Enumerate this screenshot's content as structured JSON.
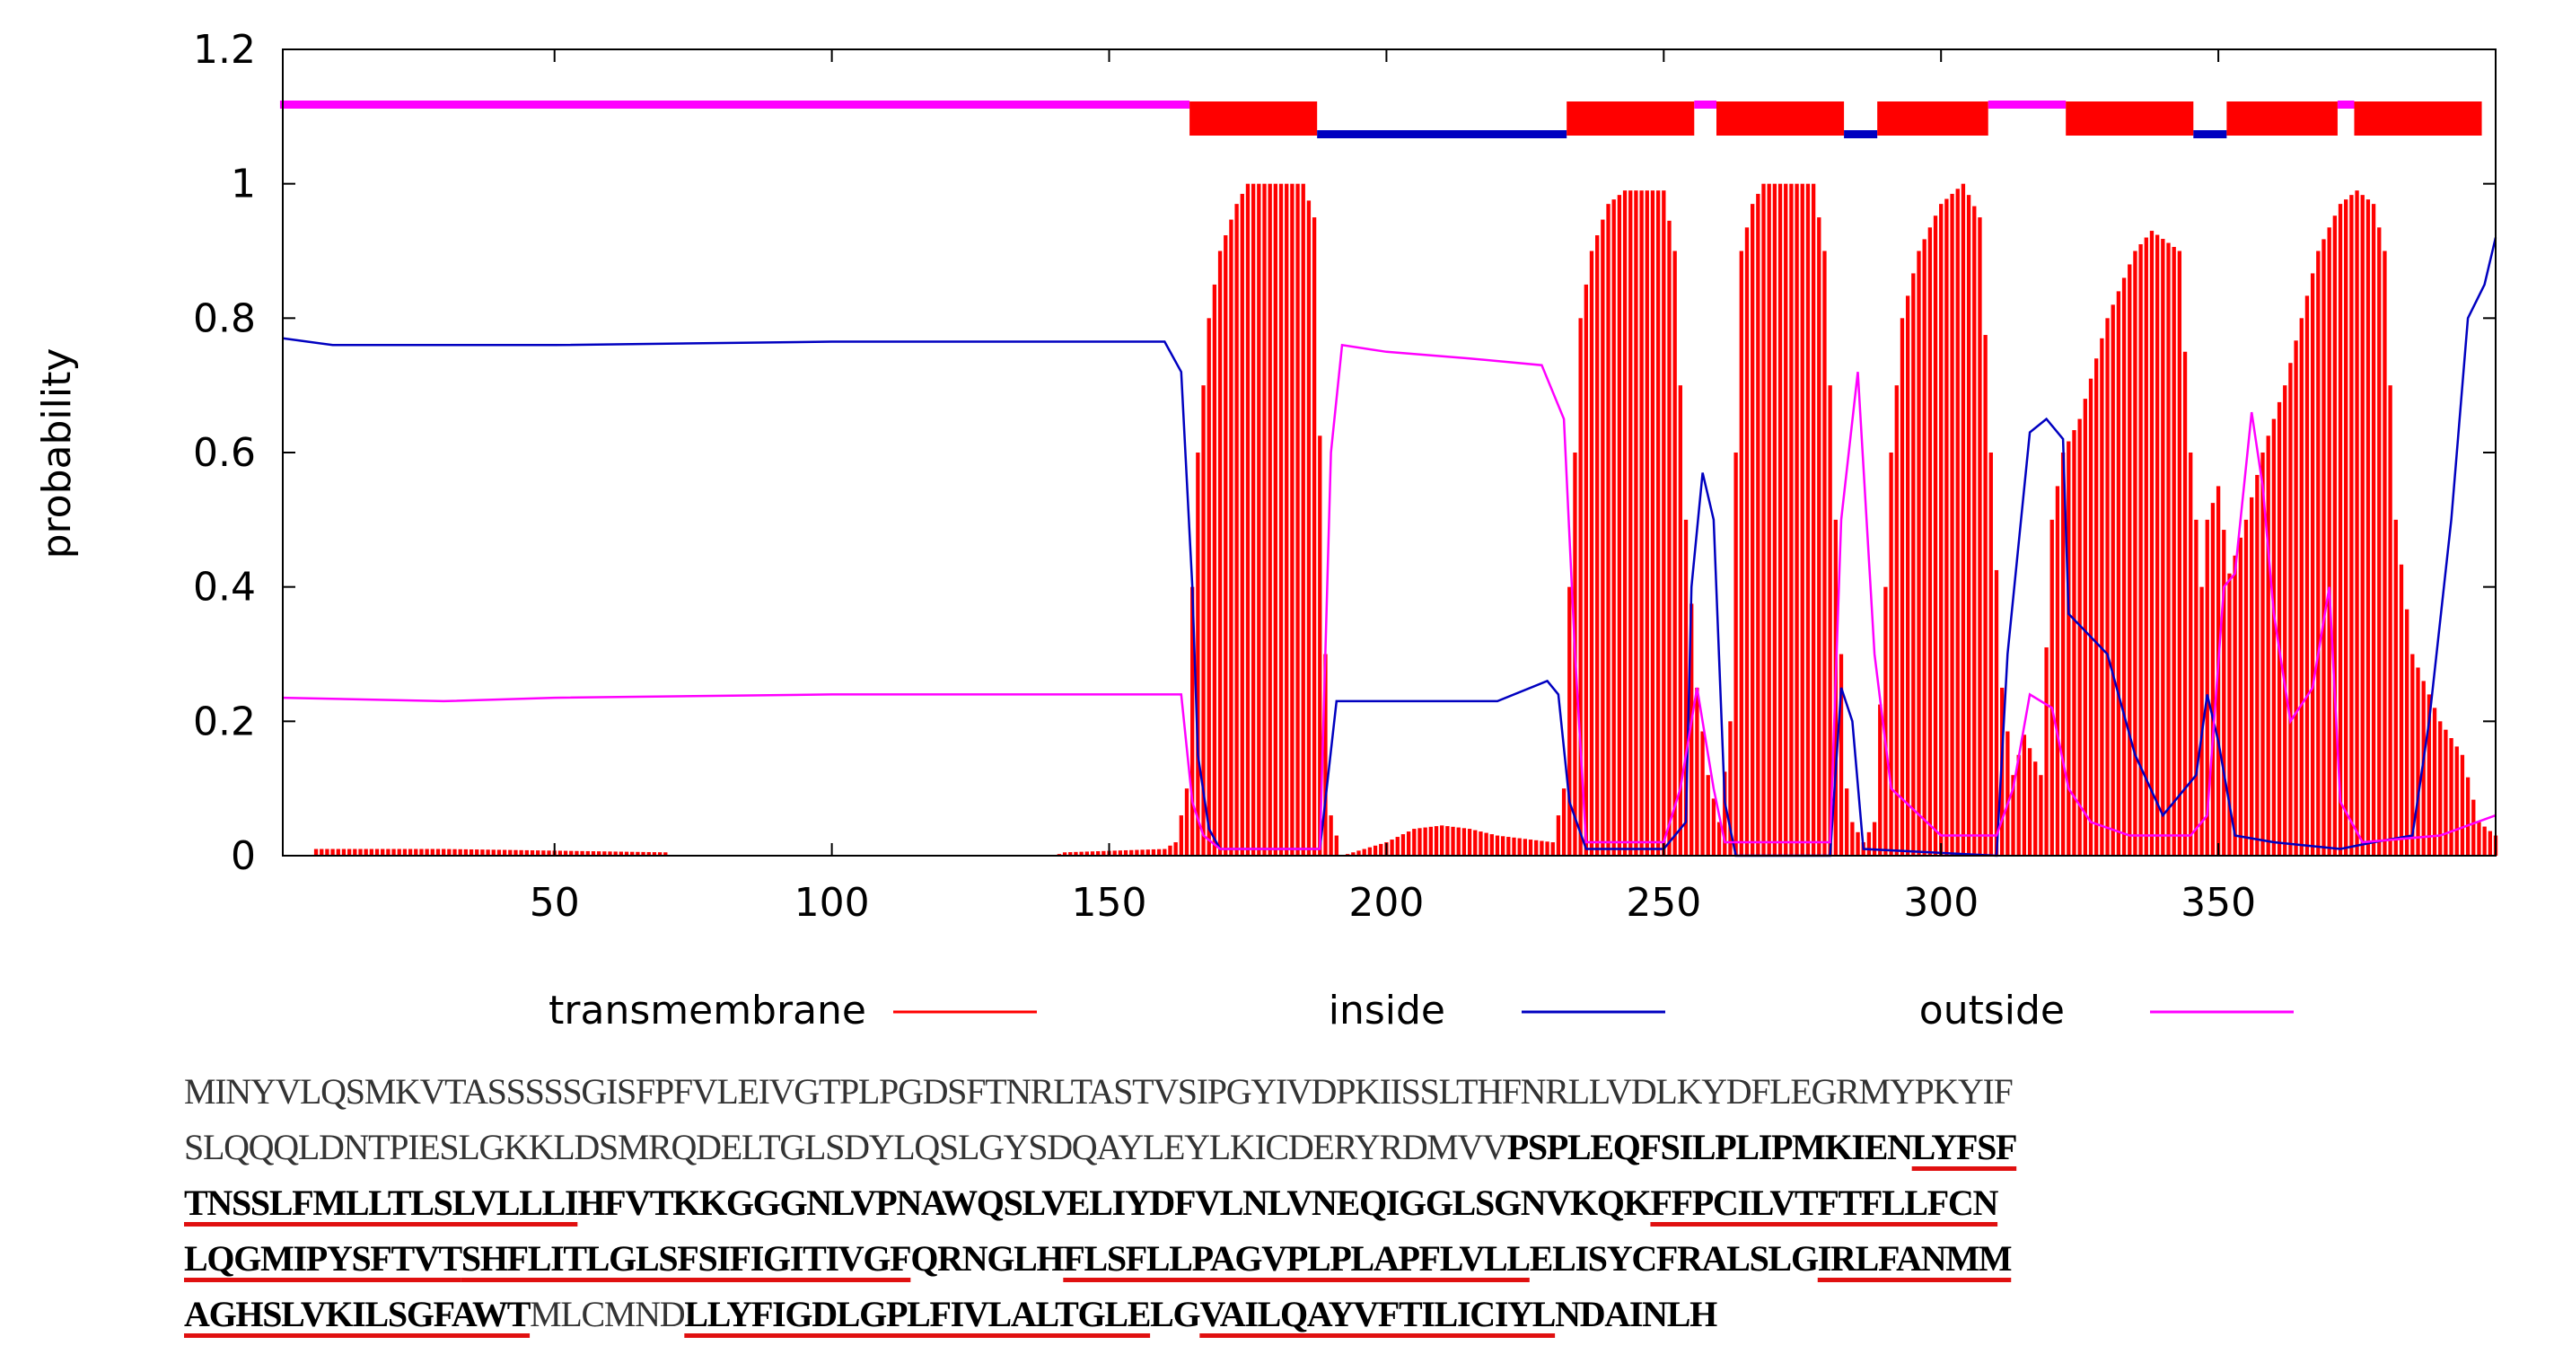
{
  "colors": {
    "transmembrane": "#ff0000",
    "inside": "#0000c0",
    "outside": "#ff00ff",
    "axis": "#000000",
    "grid": "none"
  },
  "chart_data": {
    "type": "bar",
    "title": "",
    "xlabel": "",
    "ylabel": "probability",
    "xlim": [
      1,
      400
    ],
    "ylim": [
      0,
      1.2
    ],
    "xticks": [
      50,
      100,
      150,
      200,
      250,
      300,
      350
    ],
    "yticks": [
      0,
      0.2,
      0.4,
      0.6,
      0.8,
      1,
      1.2
    ],
    "ytick_labels": [
      "0",
      "0.2",
      "0.4",
      "0.6",
      "0.8",
      "1",
      "1.2"
    ],
    "legend": {
      "placement": "bottom",
      "entries": [
        "transmembrane",
        "inside",
        "outside"
      ]
    },
    "series": [
      {
        "name": "transmembrane",
        "style": "bars",
        "points": [
          [
            1,
            0
          ],
          [
            6,
            0
          ],
          [
            7,
            0.01
          ],
          [
            30,
            0.01
          ],
          [
            70,
            0.005
          ],
          [
            71,
            0
          ],
          [
            140,
            0
          ],
          [
            142,
            0.005
          ],
          [
            160,
            0.01
          ],
          [
            162,
            0.02
          ],
          [
            164,
            0.1
          ],
          [
            165,
            0.4
          ],
          [
            166,
            0.6
          ],
          [
            168,
            0.8
          ],
          [
            170,
            0.9
          ],
          [
            173,
            0.97
          ],
          [
            175,
            1
          ],
          [
            185,
            1
          ],
          [
            187,
            0.95
          ],
          [
            189,
            0.3
          ],
          [
            190,
            0.06
          ],
          [
            192,
            0
          ],
          [
            196,
            0.01
          ],
          [
            200,
            0.02
          ],
          [
            205,
            0.04
          ],
          [
            210,
            0.045
          ],
          [
            215,
            0.04
          ],
          [
            220,
            0.03
          ],
          [
            230,
            0.02
          ],
          [
            232,
            0.1
          ],
          [
            233,
            0.4
          ],
          [
            234,
            0.6
          ],
          [
            235,
            0.8
          ],
          [
            237,
            0.9
          ],
          [
            240,
            0.97
          ],
          [
            243,
            0.99
          ],
          [
            250,
            0.99
          ],
          [
            252,
            0.9
          ],
          [
            254,
            0.5
          ],
          [
            256,
            0.25
          ],
          [
            258,
            0.12
          ],
          [
            260,
            0.05
          ],
          [
            262,
            0.2
          ],
          [
            263,
            0.6
          ],
          [
            264,
            0.9
          ],
          [
            266,
            0.97
          ],
          [
            268,
            1
          ],
          [
            277,
            1
          ],
          [
            279,
            0.9
          ],
          [
            281,
            0.5
          ],
          [
            283,
            0.1
          ],
          [
            284,
            0.05
          ],
          [
            286,
            0.02
          ],
          [
            288,
            0.05
          ],
          [
            290,
            0.4
          ],
          [
            291,
            0.6
          ],
          [
            293,
            0.8
          ],
          [
            296,
            0.9
          ],
          [
            300,
            0.97
          ],
          [
            304,
            1
          ],
          [
            307,
            0.95
          ],
          [
            309,
            0.6
          ],
          [
            311,
            0.25
          ],
          [
            313,
            0.12
          ],
          [
            315,
            0.18
          ],
          [
            318,
            0.12
          ],
          [
            320,
            0.5
          ],
          [
            322,
            0.6
          ],
          [
            325,
            0.65
          ],
          [
            330,
            0.8
          ],
          [
            335,
            0.9
          ],
          [
            338,
            0.93
          ],
          [
            343,
            0.9
          ],
          [
            345,
            0.6
          ],
          [
            347,
            0.4
          ],
          [
            348,
            0.5
          ],
          [
            350,
            0.55
          ],
          [
            352,
            0.42
          ],
          [
            355,
            0.5
          ],
          [
            358,
            0.6
          ],
          [
            362,
            0.7
          ],
          [
            365,
            0.8
          ],
          [
            368,
            0.9
          ],
          [
            372,
            0.97
          ],
          [
            375,
            0.99
          ],
          [
            378,
            0.97
          ],
          [
            380,
            0.9
          ],
          [
            382,
            0.5
          ],
          [
            385,
            0.3
          ],
          [
            390,
            0.2
          ],
          [
            394,
            0.15
          ],
          [
            397,
            0.05
          ],
          [
            400,
            0.03
          ]
        ]
      },
      {
        "name": "inside",
        "style": "line",
        "points": [
          [
            1,
            0.77
          ],
          [
            10,
            0.76
          ],
          [
            50,
            0.76
          ],
          [
            100,
            0.765
          ],
          [
            150,
            0.765
          ],
          [
            160,
            0.765
          ],
          [
            163,
            0.72
          ],
          [
            165,
            0.4
          ],
          [
            166,
            0.15
          ],
          [
            168,
            0.04
          ],
          [
            170,
            0.01
          ],
          [
            188,
            0.01
          ],
          [
            191,
            0.23
          ],
          [
            200,
            0.23
          ],
          [
            220,
            0.23
          ],
          [
            229,
            0.26
          ],
          [
            231,
            0.24
          ],
          [
            233,
            0.08
          ],
          [
            236,
            0.01
          ],
          [
            250,
            0.01
          ],
          [
            254,
            0.05
          ],
          [
            255,
            0.4
          ],
          [
            257,
            0.57
          ],
          [
            259,
            0.5
          ],
          [
            261,
            0.08
          ],
          [
            263,
            0
          ],
          [
            280,
            0
          ],
          [
            282,
            0.25
          ],
          [
            284,
            0.2
          ],
          [
            286,
            0.01
          ],
          [
            310,
            0
          ],
          [
            312,
            0.3
          ],
          [
            316,
            0.63
          ],
          [
            319,
            0.65
          ],
          [
            322,
            0.62
          ],
          [
            323,
            0.36
          ],
          [
            330,
            0.3
          ],
          [
            335,
            0.15
          ],
          [
            340,
            0.06
          ],
          [
            344,
            0.1
          ],
          [
            346,
            0.12
          ],
          [
            348,
            0.24
          ],
          [
            350,
            0.17
          ],
          [
            353,
            0.03
          ],
          [
            360,
            0.02
          ],
          [
            372,
            0.01
          ],
          [
            378,
            0.02
          ],
          [
            385,
            0.03
          ],
          [
            388,
            0.2
          ],
          [
            392,
            0.5
          ],
          [
            395,
            0.8
          ],
          [
            398,
            0.85
          ],
          [
            400,
            0.92
          ]
        ]
      },
      {
        "name": "outside",
        "style": "line",
        "points": [
          [
            1,
            0.235
          ],
          [
            30,
            0.23
          ],
          [
            50,
            0.235
          ],
          [
            100,
            0.24
          ],
          [
            160,
            0.24
          ],
          [
            163,
            0.24
          ],
          [
            165,
            0.08
          ],
          [
            167,
            0.03
          ],
          [
            170,
            0.01
          ],
          [
            188,
            0.01
          ],
          [
            190,
            0.6
          ],
          [
            192,
            0.76
          ],
          [
            200,
            0.75
          ],
          [
            215,
            0.74
          ],
          [
            228,
            0.73
          ],
          [
            232,
            0.65
          ],
          [
            234,
            0.3
          ],
          [
            236,
            0.02
          ],
          [
            250,
            0.02
          ],
          [
            253,
            0.1
          ],
          [
            256,
            0.25
          ],
          [
            259,
            0.1
          ],
          [
            261,
            0.02
          ],
          [
            280,
            0.02
          ],
          [
            282,
            0.5
          ],
          [
            285,
            0.72
          ],
          [
            288,
            0.3
          ],
          [
            291,
            0.1
          ],
          [
            300,
            0.03
          ],
          [
            310,
            0.03
          ],
          [
            313,
            0.1
          ],
          [
            316,
            0.24
          ],
          [
            320,
            0.22
          ],
          [
            323,
            0.1
          ],
          [
            327,
            0.05
          ],
          [
            334,
            0.03
          ],
          [
            340,
            0.03
          ],
          [
            345,
            0.03
          ],
          [
            348,
            0.06
          ],
          [
            351,
            0.4
          ],
          [
            353,
            0.42
          ],
          [
            356,
            0.66
          ],
          [
            358,
            0.55
          ],
          [
            360,
            0.36
          ],
          [
            363,
            0.2
          ],
          [
            367,
            0.25
          ],
          [
            370,
            0.4
          ],
          [
            372,
            0.08
          ],
          [
            376,
            0.02
          ],
          [
            390,
            0.03
          ],
          [
            400,
            0.06
          ]
        ]
      }
    ],
    "topology_bar": [
      {
        "state": "outside",
        "start": 1,
        "end": 164
      },
      {
        "state": "transmembrane",
        "start": 165,
        "end": 187
      },
      {
        "state": "inside",
        "start": 188,
        "end": 232
      },
      {
        "state": "transmembrane",
        "start": 233,
        "end": 255
      },
      {
        "state": "outside",
        "start": 256,
        "end": 259
      },
      {
        "state": "transmembrane",
        "start": 260,
        "end": 282
      },
      {
        "state": "inside",
        "start": 283,
        "end": 288
      },
      {
        "state": "transmembrane",
        "start": 289,
        "end": 308
      },
      {
        "state": "outside",
        "start": 309,
        "end": 322
      },
      {
        "state": "transmembrane",
        "start": 323,
        "end": 345
      },
      {
        "state": "inside",
        "start": 346,
        "end": 351
      },
      {
        "state": "transmembrane",
        "start": 352,
        "end": 371
      },
      {
        "state": "outside",
        "start": 372,
        "end": 374
      },
      {
        "state": "transmembrane",
        "start": 375,
        "end": 397
      }
    ]
  },
  "sequence_lines": [
    [
      {
        "t": "MINYVLQSMKVTASSSSSGISFPFVLEIVGTPLPGDSFTNRLTASTVSIPGYIVDPKIISSLTHFNRLLVDLKYDFLEGRMYPKYIF",
        "b": false,
        "u": false
      }
    ],
    [
      {
        "t": "SLQQQLDNTPIESLGKKLDSMRQDELTGLSDYLQSLGYSDQAYLEYLKICDERYRDMVV",
        "b": false,
        "u": false
      },
      {
        "t": "PSPLEQFSILPLIPMKIEN",
        "b": true,
        "u": false
      },
      {
        "t": "LYFSF",
        "b": true,
        "u": true
      }
    ],
    [
      {
        "t": "TNSSLFMLLTLSLVLLLI",
        "b": true,
        "u": true
      },
      {
        "t": "HFVTKKGGGNLVPNAWQSLVELIYDFVLNLVNEQIGGLSGNVKQK",
        "b": true,
        "u": false
      },
      {
        "t": "FFPCILVTFTFLLFCN",
        "b": true,
        "u": true
      }
    ],
    [
      {
        "t": "LQGMIPYSFTVT",
        "b": true,
        "u": true
      },
      {
        "t": "SHFLITLGLSFSIFIGITIVGF",
        "b": true,
        "u": true
      },
      {
        "t": "QRNGLH",
        "b": true,
        "u": false
      },
      {
        "t": "FLSFLLPAGVPLPLAPFLVLL",
        "b": true,
        "u": true
      },
      {
        "t": "ELISYCFRALSLG",
        "b": true,
        "u": false
      },
      {
        "t": "IRLFANMM",
        "b": true,
        "u": true
      }
    ],
    [
      {
        "t": "AGHSLVKILSGFAWT",
        "b": true,
        "u": true
      },
      {
        "t": "MLCMND",
        "b": false,
        "u": false
      },
      {
        "t": "LLYFIGDLGPLFIVLALTGLE",
        "b": true,
        "u": true
      },
      {
        "t": "LG",
        "b": true,
        "u": false
      },
      {
        "t": "VAILQAYVFTILICIYL",
        "b": true,
        "u": true
      },
      {
        "t": "NDAINLH",
        "b": true,
        "u": false
      }
    ]
  ]
}
